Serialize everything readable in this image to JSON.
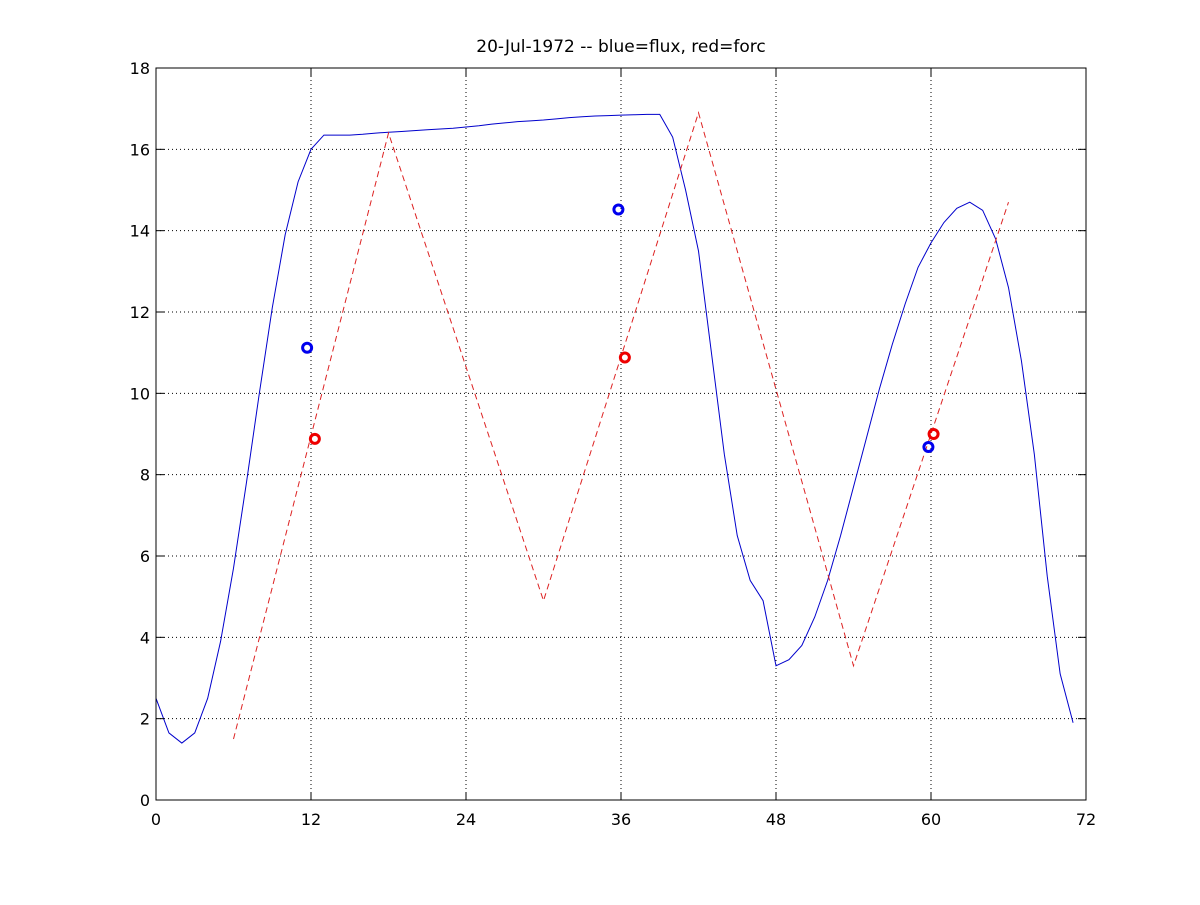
{
  "chart_data": {
    "type": "line",
    "title": "20-Jul-1972 -- blue=flux, red=forc",
    "xlabel": "",
    "ylabel": "",
    "xlim": [
      0,
      72
    ],
    "ylim": [
      0,
      18
    ],
    "xticks": [
      0,
      12,
      24,
      36,
      48,
      60,
      72
    ],
    "yticks": [
      0,
      2,
      4,
      6,
      8,
      10,
      12,
      14,
      16,
      18
    ],
    "grid": true,
    "series": [
      {
        "style": "solid",
        "color": "#0000cc",
        "x": [
          0,
          1,
          2,
          3,
          4,
          5,
          6,
          7,
          8,
          9,
          10,
          11,
          12,
          13,
          14,
          15,
          16,
          17,
          18,
          19,
          20,
          21,
          22,
          23,
          24,
          25,
          26,
          27,
          28,
          29,
          30,
          31,
          32,
          33,
          34,
          35,
          36,
          37,
          38,
          39,
          40,
          41,
          42,
          43,
          44,
          45,
          46,
          47,
          48,
          49,
          50,
          51,
          52,
          53,
          54,
          55,
          56,
          57,
          58,
          59,
          60,
          61,
          62,
          63,
          64,
          65,
          66,
          67,
          68,
          69,
          70,
          71
        ],
        "values": [
          2.5,
          1.65,
          1.4,
          1.65,
          2.5,
          3.9,
          5.7,
          7.8,
          10.0,
          12.1,
          13.9,
          15.2,
          16.0,
          16.35,
          16.35,
          16.35,
          16.37,
          16.4,
          16.42,
          16.44,
          16.46,
          16.48,
          16.5,
          16.52,
          16.55,
          16.58,
          16.62,
          16.65,
          16.68,
          16.7,
          16.72,
          16.75,
          16.78,
          16.8,
          16.82,
          16.83,
          16.84,
          16.85,
          16.86,
          16.86,
          16.3,
          15.0,
          13.5,
          11.0,
          8.5,
          6.5,
          5.4,
          4.9,
          3.3,
          3.45,
          3.8,
          4.5,
          5.4,
          6.5,
          7.7,
          8.9,
          10.1,
          11.2,
          12.2,
          13.1,
          13.7,
          14.2,
          14.55,
          14.7,
          14.5,
          13.8,
          12.6,
          10.8,
          8.5,
          5.5,
          3.1,
          1.9
        ]
      },
      {
        "style": "dashed",
        "color": "#dd2222",
        "x": [
          6,
          18,
          30,
          42,
          54,
          66
        ],
        "values": [
          1.5,
          16.4,
          4.9,
          16.9,
          3.3,
          14.7
        ]
      }
    ],
    "markers": [
      {
        "color": "#0000ee",
        "x": 11.7,
        "y": 11.12
      },
      {
        "color": "#ee0000",
        "x": 12.3,
        "y": 8.88
      },
      {
        "color": "#0000ee",
        "x": 35.8,
        "y": 14.52
      },
      {
        "color": "#ee0000",
        "x": 36.3,
        "y": 10.88
      },
      {
        "color": "#0000ee",
        "x": 59.8,
        "y": 8.68
      },
      {
        "color": "#ee0000",
        "x": 60.2,
        "y": 9.0
      }
    ]
  }
}
